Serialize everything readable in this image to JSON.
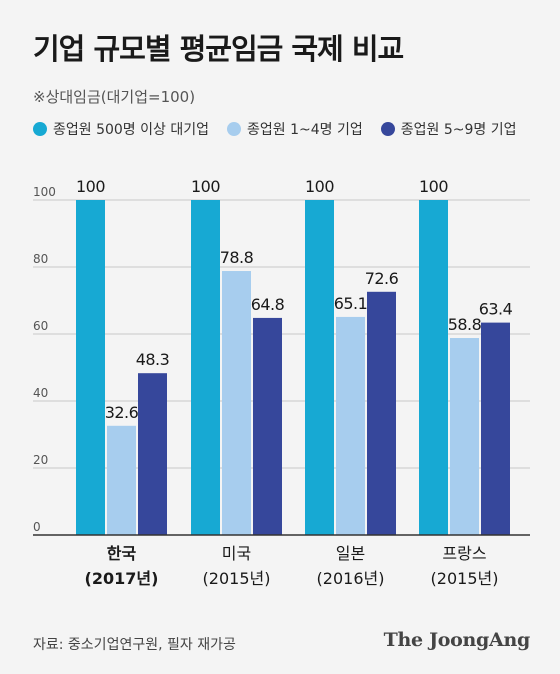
{
  "title": "기업 규모별 평균임금 국제 비교",
  "subtitle": "※상대임금(대기업=100)",
  "source": "자료: 중소기업연구원, 필자 재가공",
  "logo": "The JoongAng",
  "colors": {
    "large": "#17a9d3",
    "small_1_4": "#a7cdee",
    "small_5_9": "#36479b",
    "grid": "#c9c9c9",
    "background": "#f4f4f4"
  },
  "chart_data": {
    "type": "bar",
    "categories": [
      "한국",
      "미국",
      "일본",
      "프랑스"
    ],
    "category_years": [
      "(2017년)",
      "(2015년)",
      "(2016년)",
      "(2015년)"
    ],
    "series": [
      {
        "name": "종업원 500명 이상 대기업",
        "values": [
          100,
          100,
          100,
          100
        ]
      },
      {
        "name": "종업원 1~4명 기업",
        "values": [
          32.6,
          78.8,
          65.1,
          58.8
        ]
      },
      {
        "name": "종업원 5~9명 기업",
        "values": [
          48.3,
          64.8,
          72.6,
          63.4
        ]
      }
    ],
    "ylim": [
      0,
      100
    ],
    "yticks": [
      0,
      20,
      40,
      60,
      80,
      100
    ],
    "grid": true,
    "legend_position": "top",
    "highlight_category": "한국"
  }
}
